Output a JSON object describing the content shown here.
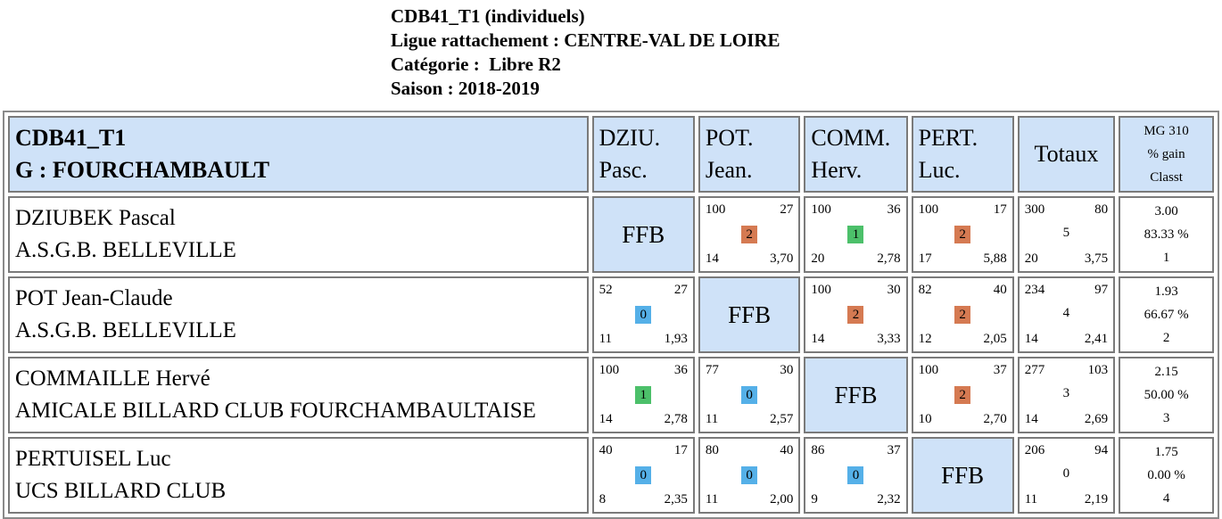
{
  "header": {
    "line1": "CDB41_T1 (individuels)",
    "line2": "Ligue rattachement : CENTRE-VAL DE LOIRE",
    "line3": "Catégorie :  Libre R2",
    "line4": "Saison : 2018-2019"
  },
  "table": {
    "title": "CDB41_T1",
    "group": "G : FOURCHAMBAULT",
    "columns": [
      {
        "l1": "DZIU.",
        "l2": "Pasc."
      },
      {
        "l1": "POT.",
        "l2": "Jean."
      },
      {
        "l1": "COMM.",
        "l2": "Herv."
      },
      {
        "l1": "PERT.",
        "l2": "Luc."
      }
    ],
    "totaux_label": "Totaux",
    "mg_header": {
      "l1": "MG 310",
      "l2": "% gain",
      "l3": "Classt"
    },
    "ffb_label": "FFB",
    "badge_colors": {
      "0": "#55b0e8",
      "1": "#4cc06a",
      "2": "#d57a52"
    },
    "rows": [
      {
        "name": "DZIUBEK Pascal",
        "club": "A.S.G.B. BELLEVILLE",
        "cells": [
          null,
          {
            "pts": "100",
            "serie": "27",
            "badge": "2",
            "rep": "14",
            "moy": "3,70"
          },
          {
            "pts": "100",
            "serie": "36",
            "badge": "1",
            "rep": "20",
            "moy": "2,78"
          },
          {
            "pts": "100",
            "serie": "17",
            "badge": "2",
            "rep": "17",
            "moy": "5,88"
          }
        ],
        "total": {
          "pts": "300",
          "serie": "80",
          "mid": "5",
          "rep": "20",
          "moy": "3,75"
        },
        "mg": {
          "moy": "3.00",
          "pct": "83.33 %",
          "rank": "1"
        }
      },
      {
        "name": "POT Jean-Claude",
        "club": "A.S.G.B. BELLEVILLE",
        "cells": [
          {
            "pts": "52",
            "serie": "27",
            "badge": "0",
            "rep": "11",
            "moy": "1,93"
          },
          null,
          {
            "pts": "100",
            "serie": "30",
            "badge": "2",
            "rep": "14",
            "moy": "3,33"
          },
          {
            "pts": "82",
            "serie": "40",
            "badge": "2",
            "rep": "12",
            "moy": "2,05"
          }
        ],
        "total": {
          "pts": "234",
          "serie": "97",
          "mid": "4",
          "rep": "14",
          "moy": "2,41"
        },
        "mg": {
          "moy": "1.93",
          "pct": "66.67 %",
          "rank": "2"
        }
      },
      {
        "name": "COMMAILLE Hervé",
        "club": "AMICALE BILLARD CLUB FOURCHAMBAULTAISE",
        "cells": [
          {
            "pts": "100",
            "serie": "36",
            "badge": "1",
            "rep": "14",
            "moy": "2,78"
          },
          {
            "pts": "77",
            "serie": "30",
            "badge": "0",
            "rep": "11",
            "moy": "2,57"
          },
          null,
          {
            "pts": "100",
            "serie": "37",
            "badge": "2",
            "rep": "10",
            "moy": "2,70"
          }
        ],
        "total": {
          "pts": "277",
          "serie": "103",
          "mid": "3",
          "rep": "14",
          "moy": "2,69"
        },
        "mg": {
          "moy": "2.15",
          "pct": "50.00 %",
          "rank": "3"
        }
      },
      {
        "name": "PERTUISEL Luc",
        "club": "UCS BILLARD CLUB",
        "cells": [
          {
            "pts": "40",
            "serie": "17",
            "badge": "0",
            "rep": "8",
            "moy": "2,35"
          },
          {
            "pts": "80",
            "serie": "40",
            "badge": "0",
            "rep": "11",
            "moy": "2,00"
          },
          {
            "pts": "86",
            "serie": "37",
            "badge": "0",
            "rep": "9",
            "moy": "2,32"
          },
          null
        ],
        "total": {
          "pts": "206",
          "serie": "94",
          "mid": "0",
          "rep": "11",
          "moy": "2,19"
        },
        "mg": {
          "moy": "1.75",
          "pct": "0.00 %",
          "rank": "4"
        }
      }
    ]
  }
}
